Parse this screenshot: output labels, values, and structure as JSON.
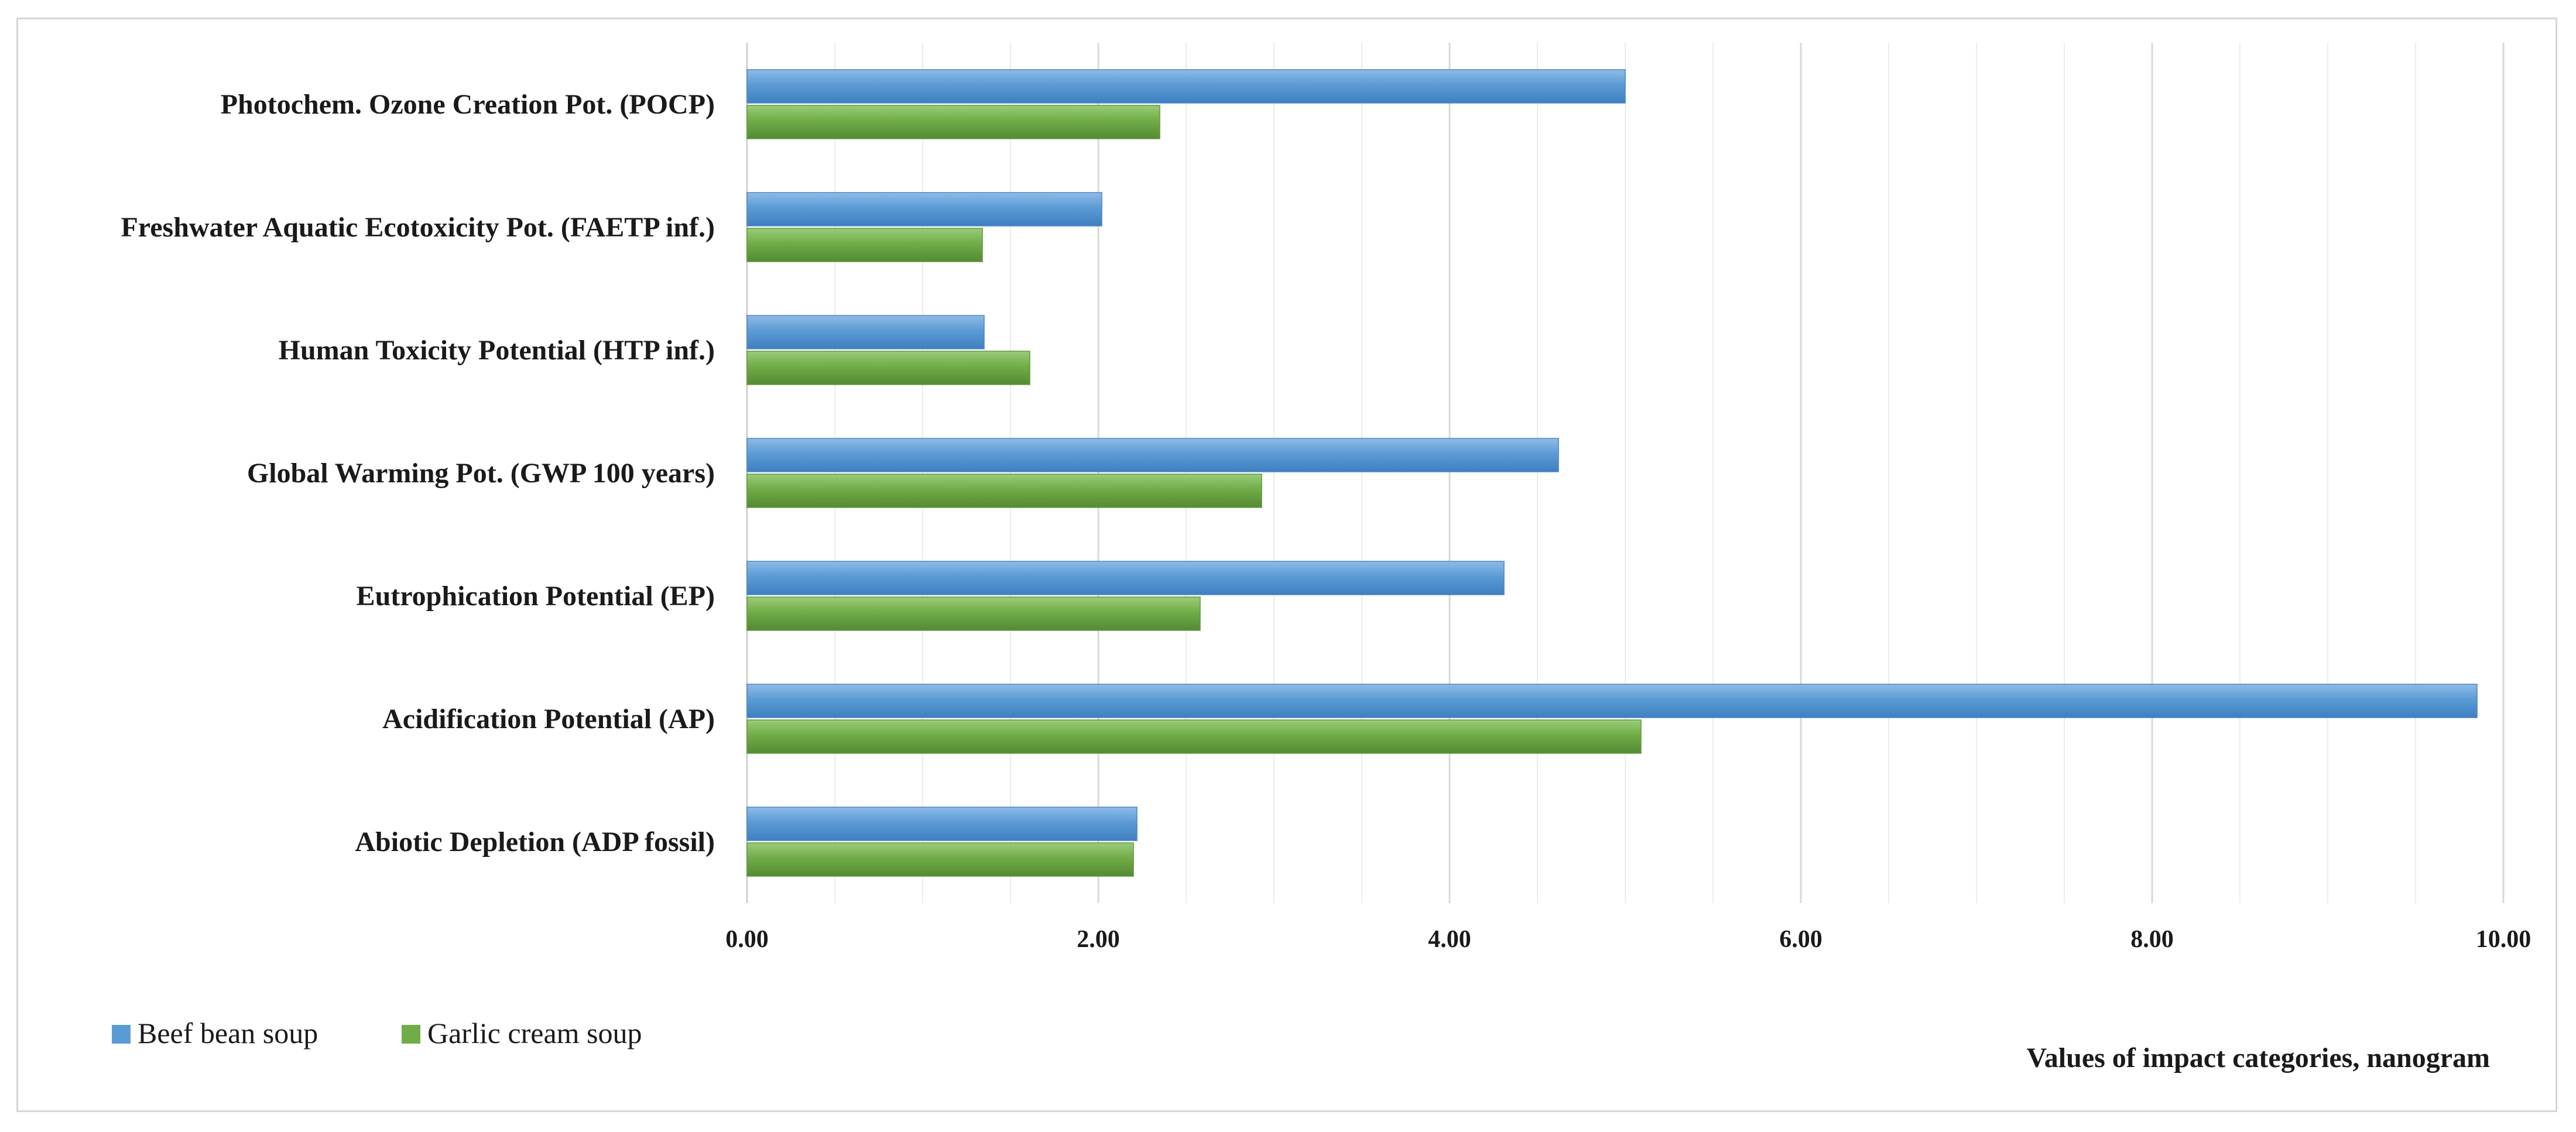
{
  "chart_data": {
    "type": "bar",
    "orientation": "horizontal",
    "categories": [
      "Abiotic Depletion (ADP fossil)",
      "Acidification Potential (AP)",
      "Eutrophication Potential (EP)",
      "Global Warming Pot. (GWP 100 years)",
      "Human Toxicity Potential (HTP inf.)",
      "Freshwater Aquatic Ecotoxicity Pot. (FAETP inf.)",
      "Photochem. Ozone Creation Pot. (POCP)"
    ],
    "series": [
      {
        "name": "Beef bean soup",
        "color": "#5b9bd5",
        "values": [
          2.22,
          9.85,
          4.31,
          4.62,
          1.35,
          2.02,
          5.0
        ]
      },
      {
        "name": "Garlic cream soup",
        "color": "#70ad47",
        "values": [
          2.2,
          5.09,
          2.58,
          2.93,
          1.61,
          1.34,
          2.35
        ]
      }
    ],
    "xlabel": "Values of impact categories, nanogram",
    "xlim": [
      0,
      10
    ],
    "xticks": [
      "0.00",
      "2.00",
      "4.00",
      "6.00",
      "8.00",
      "10.00"
    ],
    "grid": "vertical",
    "legend_position": "bottom-left"
  }
}
